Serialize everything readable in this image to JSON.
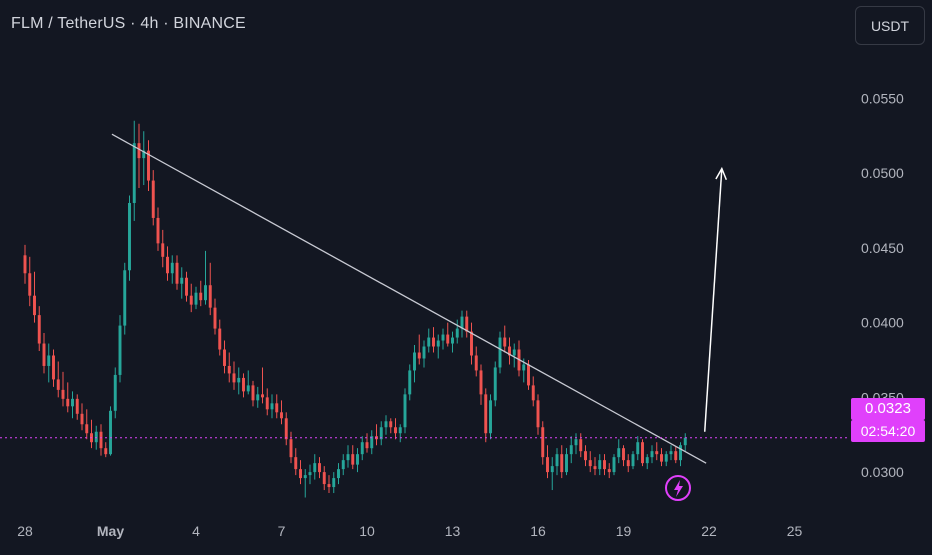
{
  "header": {
    "title": "FLM / TetherUS · 4h · BINANCE"
  },
  "toolbar": {
    "currency_label": "USDT"
  },
  "price_tag": {
    "price": "0.0323",
    "countdown": "02:54:20"
  },
  "colors": {
    "background": "#131722",
    "up": "#26a69a",
    "down": "#ef5350",
    "accent": "#e040fb",
    "text": "#d1d4dc"
  },
  "chart_data": {
    "type": "candlestick",
    "xlabel": "",
    "ylabel": "",
    "x_tick_labels": [
      {
        "label": "28",
        "day": 0
      },
      {
        "label": "May",
        "day": 3
      },
      {
        "label": "4",
        "day": 6
      },
      {
        "label": "7",
        "day": 9
      },
      {
        "label": "10",
        "day": 12
      },
      {
        "label": "13",
        "day": 15
      },
      {
        "label": "16",
        "day": 18
      },
      {
        "label": "19",
        "day": 21
      },
      {
        "label": "22",
        "day": 24
      },
      {
        "label": "25",
        "day": 27
      }
    ],
    "y_tick_labels": [
      "0.0300",
      "0.0350",
      "0.0400",
      "0.0450",
      "0.0500",
      "0.0550"
    ],
    "ylim": [
      0.0278,
      0.0585
    ],
    "current_price": 0.0323,
    "candles_per_day": 6,
    "candles": [
      [
        0.0445,
        0.0452,
        0.0426,
        0.0433
      ],
      [
        0.0433,
        0.0444,
        0.0411,
        0.0418
      ],
      [
        0.0418,
        0.0434,
        0.04,
        0.0405
      ],
      [
        0.0405,
        0.0411,
        0.0381,
        0.0386
      ],
      [
        0.0386,
        0.0393,
        0.0366,
        0.0371
      ],
      [
        0.0371,
        0.0386,
        0.036,
        0.0378
      ],
      [
        0.0378,
        0.0382,
        0.0357,
        0.0362
      ],
      [
        0.0362,
        0.0374,
        0.035,
        0.0355
      ],
      [
        0.0355,
        0.0367,
        0.0344,
        0.0349
      ],
      [
        0.0349,
        0.036,
        0.034,
        0.0344
      ],
      [
        0.0344,
        0.0354,
        0.0336,
        0.0349
      ],
      [
        0.0349,
        0.0352,
        0.0335,
        0.0339
      ],
      [
        0.0339,
        0.0346,
        0.0328,
        0.0332
      ],
      [
        0.0332,
        0.0342,
        0.0322,
        0.0326
      ],
      [
        0.0326,
        0.0335,
        0.0316,
        0.032
      ],
      [
        0.032,
        0.0331,
        0.0315,
        0.0327
      ],
      [
        0.0327,
        0.0332,
        0.0311,
        0.0316
      ],
      [
        0.0316,
        0.032,
        0.031,
        0.0312
      ],
      [
        0.0312,
        0.0344,
        0.0311,
        0.0341
      ],
      [
        0.0341,
        0.037,
        0.0336,
        0.0365
      ],
      [
        0.0365,
        0.0405,
        0.036,
        0.0398
      ],
      [
        0.0398,
        0.044,
        0.0392,
        0.0435
      ],
      [
        0.0435,
        0.0485,
        0.0428,
        0.048
      ],
      [
        0.048,
        0.0535,
        0.0468,
        0.052
      ],
      [
        0.052,
        0.0533,
        0.049,
        0.051
      ],
      [
        0.051,
        0.0528,
        0.0492,
        0.0515
      ],
      [
        0.0515,
        0.0522,
        0.0488,
        0.0495
      ],
      [
        0.0495,
        0.0502,
        0.0465,
        0.047
      ],
      [
        0.047,
        0.0477,
        0.0448,
        0.0453
      ],
      [
        0.0453,
        0.0462,
        0.0437,
        0.0444
      ],
      [
        0.0444,
        0.0451,
        0.0428,
        0.0433
      ],
      [
        0.0433,
        0.0445,
        0.0426,
        0.044
      ],
      [
        0.044,
        0.0445,
        0.0422,
        0.0426
      ],
      [
        0.0426,
        0.0437,
        0.0416,
        0.043
      ],
      [
        0.043,
        0.0434,
        0.0414,
        0.0418
      ],
      [
        0.0418,
        0.0426,
        0.0407,
        0.0412
      ],
      [
        0.0412,
        0.0424,
        0.0409,
        0.042
      ],
      [
        0.042,
        0.0428,
        0.0411,
        0.0415
      ],
      [
        0.0415,
        0.0448,
        0.0412,
        0.0425
      ],
      [
        0.0425,
        0.044,
        0.0405,
        0.041
      ],
      [
        0.041,
        0.0416,
        0.0392,
        0.0396
      ],
      [
        0.0396,
        0.0402,
        0.0378,
        0.0382
      ],
      [
        0.0382,
        0.0388,
        0.0366,
        0.0371
      ],
      [
        0.0371,
        0.038,
        0.036,
        0.0366
      ],
      [
        0.0366,
        0.0374,
        0.0355,
        0.036
      ],
      [
        0.036,
        0.037,
        0.0352,
        0.0363
      ],
      [
        0.0363,
        0.0366,
        0.035,
        0.0354
      ],
      [
        0.0354,
        0.0368,
        0.0352,
        0.0358
      ],
      [
        0.0358,
        0.0361,
        0.0344,
        0.0348
      ],
      [
        0.0348,
        0.0357,
        0.0343,
        0.0352
      ],
      [
        0.0352,
        0.037,
        0.0346,
        0.035
      ],
      [
        0.035,
        0.0356,
        0.0338,
        0.0342
      ],
      [
        0.0342,
        0.0352,
        0.0336,
        0.0346
      ],
      [
        0.0346,
        0.0352,
        0.0336,
        0.034
      ],
      [
        0.034,
        0.0348,
        0.0332,
        0.0336
      ],
      [
        0.0336,
        0.034,
        0.0318,
        0.0322
      ],
      [
        0.0322,
        0.0327,
        0.0306,
        0.031
      ],
      [
        0.031,
        0.0316,
        0.0298,
        0.0302
      ],
      [
        0.0302,
        0.0308,
        0.0292,
        0.0296
      ],
      [
        0.0296,
        0.0302,
        0.0283,
        0.0298
      ],
      [
        0.0298,
        0.0305,
        0.0292,
        0.03
      ],
      [
        0.03,
        0.0312,
        0.0295,
        0.0306
      ],
      [
        0.0306,
        0.031,
        0.0296,
        0.03
      ],
      [
        0.03,
        0.0304,
        0.0288,
        0.0292
      ],
      [
        0.0292,
        0.0298,
        0.0286,
        0.029
      ],
      [
        0.029,
        0.03,
        0.0286,
        0.0296
      ],
      [
        0.0296,
        0.0306,
        0.0292,
        0.0302
      ],
      [
        0.0302,
        0.0312,
        0.0298,
        0.0308
      ],
      [
        0.0308,
        0.0318,
        0.0303,
        0.0312
      ],
      [
        0.0312,
        0.0318,
        0.0302,
        0.0305
      ],
      [
        0.0305,
        0.0316,
        0.03,
        0.0312
      ],
      [
        0.0312,
        0.0324,
        0.0308,
        0.032
      ],
      [
        0.032,
        0.0326,
        0.0313,
        0.0316
      ],
      [
        0.0316,
        0.0328,
        0.0312,
        0.0324
      ],
      [
        0.0324,
        0.0332,
        0.0318,
        0.0322
      ],
      [
        0.0322,
        0.0334,
        0.0318,
        0.033
      ],
      [
        0.033,
        0.0338,
        0.0325,
        0.0334
      ],
      [
        0.0334,
        0.0336,
        0.0326,
        0.033
      ],
      [
        0.033,
        0.0336,
        0.0322,
        0.0326
      ],
      [
        0.0326,
        0.0332,
        0.032,
        0.033
      ],
      [
        0.033,
        0.0356,
        0.0326,
        0.0352
      ],
      [
        0.0352,
        0.0372,
        0.0348,
        0.0368
      ],
      [
        0.0368,
        0.0385,
        0.036,
        0.038
      ],
      [
        0.038,
        0.0392,
        0.0372,
        0.0376
      ],
      [
        0.0376,
        0.0388,
        0.037,
        0.0384
      ],
      [
        0.0384,
        0.0396,
        0.038,
        0.039
      ],
      [
        0.039,
        0.0397,
        0.038,
        0.0384
      ],
      [
        0.0384,
        0.0392,
        0.0376,
        0.0388
      ],
      [
        0.0388,
        0.0396,
        0.0382,
        0.0392
      ],
      [
        0.0392,
        0.04,
        0.0384,
        0.0386
      ],
      [
        0.0386,
        0.0394,
        0.038,
        0.039
      ],
      [
        0.039,
        0.0402,
        0.0386,
        0.0396
      ],
      [
        0.0396,
        0.0408,
        0.039,
        0.0404
      ],
      [
        0.0404,
        0.0408,
        0.039,
        0.0394
      ],
      [
        0.0394,
        0.04,
        0.0372,
        0.0378
      ],
      [
        0.0378,
        0.0384,
        0.0364,
        0.0368
      ],
      [
        0.0368,
        0.0372,
        0.0345,
        0.0352
      ],
      [
        0.0352,
        0.0356,
        0.032,
        0.0326
      ],
      [
        0.0326,
        0.0352,
        0.0322,
        0.0348
      ],
      [
        0.0348,
        0.0374,
        0.0344,
        0.037
      ],
      [
        0.037,
        0.0394,
        0.0366,
        0.039
      ],
      [
        0.039,
        0.0398,
        0.038,
        0.0384
      ],
      [
        0.0384,
        0.039,
        0.0372,
        0.0378
      ],
      [
        0.0378,
        0.0386,
        0.037,
        0.0382
      ],
      [
        0.0382,
        0.0388,
        0.0364,
        0.0368
      ],
      [
        0.0368,
        0.0376,
        0.036,
        0.0372
      ],
      [
        0.0372,
        0.0375,
        0.0355,
        0.0358
      ],
      [
        0.0358,
        0.0364,
        0.0344,
        0.0348
      ],
      [
        0.0348,
        0.0352,
        0.0325,
        0.033
      ],
      [
        0.033,
        0.0334,
        0.0305,
        0.031
      ],
      [
        0.031,
        0.0318,
        0.0296,
        0.03
      ],
      [
        0.03,
        0.031,
        0.0288,
        0.0304
      ],
      [
        0.0304,
        0.0316,
        0.0298,
        0.0312
      ],
      [
        0.0312,
        0.0318,
        0.0296,
        0.03
      ],
      [
        0.03,
        0.0316,
        0.0298,
        0.0312
      ],
      [
        0.0312,
        0.0324,
        0.0306,
        0.0318
      ],
      [
        0.0318,
        0.0326,
        0.0312,
        0.0322
      ],
      [
        0.0322,
        0.0326,
        0.031,
        0.0314
      ],
      [
        0.0314,
        0.0318,
        0.0304,
        0.0308
      ],
      [
        0.0308,
        0.0314,
        0.03,
        0.0304
      ],
      [
        0.0304,
        0.031,
        0.0298,
        0.0302
      ],
      [
        0.0302,
        0.0312,
        0.0298,
        0.0308
      ],
      [
        0.0308,
        0.0312,
        0.0298,
        0.0302
      ],
      [
        0.0302,
        0.0306,
        0.0296,
        0.03
      ],
      [
        0.03,
        0.0312,
        0.0298,
        0.031
      ],
      [
        0.031,
        0.0322,
        0.0306,
        0.0316
      ],
      [
        0.0316,
        0.0318,
        0.0304,
        0.0308
      ],
      [
        0.0308,
        0.0312,
        0.03,
        0.0304
      ],
      [
        0.0304,
        0.0314,
        0.0302,
        0.0312
      ],
      [
        0.0312,
        0.0324,
        0.0308,
        0.032
      ],
      [
        0.032,
        0.0322,
        0.0304,
        0.0306
      ],
      [
        0.0306,
        0.0312,
        0.0302,
        0.031
      ],
      [
        0.031,
        0.0318,
        0.0306,
        0.0314
      ],
      [
        0.0314,
        0.032,
        0.0308,
        0.0312
      ],
      [
        0.0312,
        0.0316,
        0.0304,
        0.0307
      ],
      [
        0.0307,
        0.0314,
        0.0304,
        0.0312
      ],
      [
        0.0312,
        0.0318,
        0.0308,
        0.0314
      ],
      [
        0.0314,
        0.0317,
        0.0306,
        0.0308
      ],
      [
        0.0308,
        0.032,
        0.0304,
        0.0318
      ],
      [
        0.0318,
        0.0326,
        0.0314,
        0.0323
      ]
    ],
    "annotations": [
      {
        "type": "trendline",
        "color": "#c8cad3",
        "from": {
          "day": 3.05,
          "value": 0.0526
        },
        "to": {
          "day": 23.9,
          "value": 0.0306
        }
      },
      {
        "type": "arrow",
        "color": "#ffffff",
        "from": {
          "day": 23.85,
          "value": 0.0327
        },
        "to": {
          "day": 24.45,
          "value": 0.0503
        }
      },
      {
        "type": "price-line",
        "color": "#e040fb",
        "value": 0.0323
      }
    ]
  }
}
